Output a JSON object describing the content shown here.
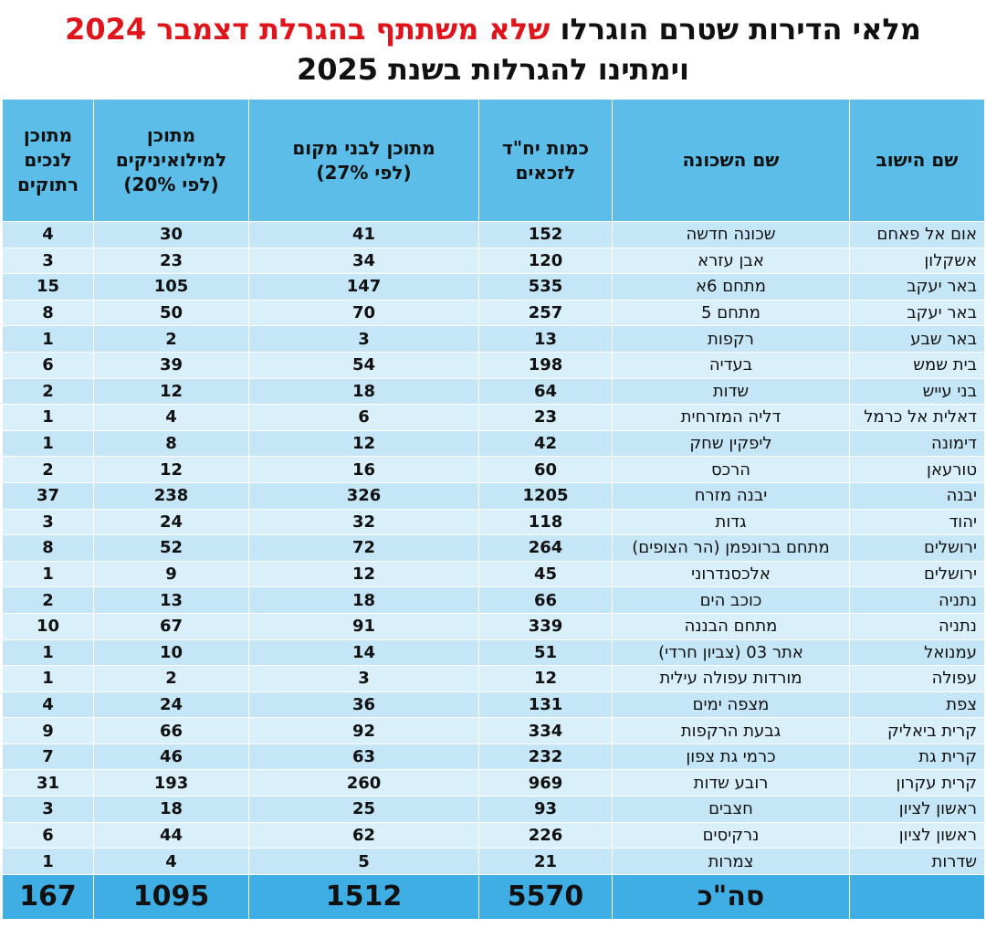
{
  "title": {
    "line1_part1": "מלאי הדירות שטרם הוגרלו ",
    "line1_red": "שלא משתתף בהגרלת דצמבר 2024",
    "line2": "וימתינו להגרלות בשנת 2025"
  },
  "headers": {
    "city": "שם הישוב",
    "neighborhood": "שם השכונה",
    "units": "כמות יח\"ד לזכאים",
    "locals": "מתוכן לבני מקום (לפי 27%)",
    "reservists": "מתוכן למילואיניקים (לפי 20%)",
    "disabled": "מתוכן לנכים רתוקים"
  },
  "rows": [
    {
      "city": "אום אל פאחם",
      "neighborhood": "שכונה חדשה",
      "units": "152",
      "locals": "41",
      "reservists": "30",
      "disabled": "4"
    },
    {
      "city": "אשקלון",
      "neighborhood": "אבן עזרא",
      "units": "120",
      "locals": "34",
      "reservists": "23",
      "disabled": "3"
    },
    {
      "city": "באר יעקב",
      "neighborhood": "מתחם 6א",
      "units": "535",
      "locals": "147",
      "reservists": "105",
      "disabled": "15"
    },
    {
      "city": "באר יעקב",
      "neighborhood": "מתחם 5",
      "units": "257",
      "locals": "70",
      "reservists": "50",
      "disabled": "8"
    },
    {
      "city": "באר שבע",
      "neighborhood": "רקפות",
      "units": "13",
      "locals": "3",
      "reservists": "2",
      "disabled": "1"
    },
    {
      "city": "בית שמש",
      "neighborhood": "בעדיה",
      "units": "198",
      "locals": "54",
      "reservists": "39",
      "disabled": "6"
    },
    {
      "city": "בני עייש",
      "neighborhood": "שדות",
      "units": "64",
      "locals": "18",
      "reservists": "12",
      "disabled": "2"
    },
    {
      "city": "דאלית אל כרמל",
      "neighborhood": "דליה המזרחית",
      "units": "23",
      "locals": "6",
      "reservists": "4",
      "disabled": "1"
    },
    {
      "city": "דימונה",
      "neighborhood": "ליפקין שחק",
      "units": "42",
      "locals": "12",
      "reservists": "8",
      "disabled": "1"
    },
    {
      "city": "טורעאן",
      "neighborhood": "הרכס",
      "units": "60",
      "locals": "16",
      "reservists": "12",
      "disabled": "2"
    },
    {
      "city": "יבנה",
      "neighborhood": "יבנה מזרח",
      "units": "1205",
      "locals": "326",
      "reservists": "238",
      "disabled": "37"
    },
    {
      "city": "יהוד",
      "neighborhood": "גדות",
      "units": "118",
      "locals": "32",
      "reservists": "24",
      "disabled": "3"
    },
    {
      "city": "ירושלים",
      "neighborhood": "מתחם ברונפמן (הר הצופים)",
      "units": "264",
      "locals": "72",
      "reservists": "52",
      "disabled": "8"
    },
    {
      "city": "ירושלים",
      "neighborhood": "אלכסנדרוני",
      "units": "45",
      "locals": "12",
      "reservists": "9",
      "disabled": "1"
    },
    {
      "city": "נתניה",
      "neighborhood": "כוכב הים",
      "units": "66",
      "locals": "18",
      "reservists": "13",
      "disabled": "2"
    },
    {
      "city": "נתניה",
      "neighborhood": "מתחם הבננה",
      "units": "339",
      "locals": "91",
      "reservists": "67",
      "disabled": "10"
    },
    {
      "city": "עמנואל",
      "neighborhood": "אתר 03 (צביון חרדי)",
      "units": "51",
      "locals": "14",
      "reservists": "10",
      "disabled": "1"
    },
    {
      "city": "עפולה",
      "neighborhood": "מורדות עפולה עילית",
      "units": "12",
      "locals": "3",
      "reservists": "2",
      "disabled": "1"
    },
    {
      "city": "צפת",
      "neighborhood": "מצפה ימים",
      "units": "131",
      "locals": "36",
      "reservists": "24",
      "disabled": "4"
    },
    {
      "city": "קרית ביאליק",
      "neighborhood": "גבעת הרקפות",
      "units": "334",
      "locals": "92",
      "reservists": "66",
      "disabled": "9"
    },
    {
      "city": "קרית גת",
      "neighborhood": "כרמי גת צפון",
      "units": "232",
      "locals": "63",
      "reservists": "46",
      "disabled": "7"
    },
    {
      "city": "קרית עקרון",
      "neighborhood": "רובע שדות",
      "units": "969",
      "locals": "260",
      "reservists": "193",
      "disabled": "31"
    },
    {
      "city": "ראשון לציון",
      "neighborhood": "חצבים",
      "units": "93",
      "locals": "25",
      "reservists": "18",
      "disabled": "3"
    },
    {
      "city": "ראשון לציון",
      "neighborhood": "נרקיסים",
      "units": "226",
      "locals": "62",
      "reservists": "44",
      "disabled": "6"
    },
    {
      "city": "שדרות",
      "neighborhood": "צמרות",
      "units": "21",
      "locals": "5",
      "reservists": "4",
      "disabled": "1"
    }
  ],
  "totals": {
    "label": "סה\"כ",
    "units": "5570",
    "locals": "1512",
    "reservists": "1095",
    "disabled": "167"
  },
  "colors": {
    "header_bg": "#5bbde8",
    "row_bg": "#c5e6f7",
    "footer_bg": "#3faee4",
    "title_red": "#e0151b"
  }
}
